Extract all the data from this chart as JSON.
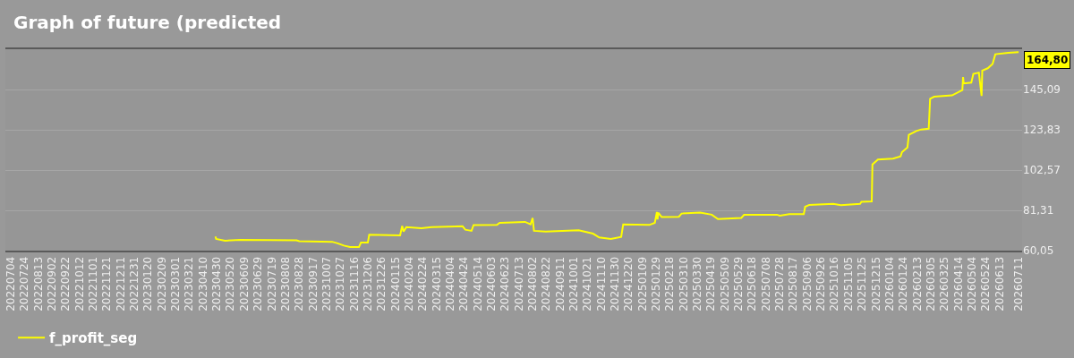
{
  "chart_data": {
    "type": "line",
    "title": "Graph of future (predicted",
    "xlim": [
      "2022-06-26",
      "2026-07-16"
    ],
    "xticks": [
      {
        "value": "2022-07-04",
        "label": "20220704"
      },
      {
        "value": "2022-07-24",
        "label": "20220724"
      },
      {
        "value": "2022-08-13",
        "label": "20220813"
      },
      {
        "value": "2022-09-02",
        "label": "20220902"
      },
      {
        "value": "2022-09-22",
        "label": "20220922"
      },
      {
        "value": "2022-10-12",
        "label": "20221012"
      },
      {
        "value": "2022-11-01",
        "label": "20221101"
      },
      {
        "value": "2022-11-21",
        "label": "20221121"
      },
      {
        "value": "2022-12-11",
        "label": "20221211"
      },
      {
        "value": "2022-12-31",
        "label": "20221231"
      },
      {
        "value": "2023-01-20",
        "label": "20230120"
      },
      {
        "value": "2023-02-09",
        "label": "20230209"
      },
      {
        "value": "2023-03-01",
        "label": "20230301"
      },
      {
        "value": "2023-03-21",
        "label": "20230321"
      },
      {
        "value": "2023-04-10",
        "label": "20230410"
      },
      {
        "value": "2023-04-30",
        "label": "20230430"
      },
      {
        "value": "2023-05-20",
        "label": "20230520"
      },
      {
        "value": "2023-06-09",
        "label": "20230609"
      },
      {
        "value": "2023-06-29",
        "label": "20230629"
      },
      {
        "value": "2023-07-19",
        "label": "20230719"
      },
      {
        "value": "2023-08-08",
        "label": "20230808"
      },
      {
        "value": "2023-08-28",
        "label": "20230828"
      },
      {
        "value": "2023-09-17",
        "label": "20230917"
      },
      {
        "value": "2023-10-07",
        "label": "20231007"
      },
      {
        "value": "2023-10-27",
        "label": "20231027"
      },
      {
        "value": "2023-11-16",
        "label": "20231116"
      },
      {
        "value": "2023-12-06",
        "label": "20231206"
      },
      {
        "value": "2023-12-26",
        "label": "20231226"
      },
      {
        "value": "2024-01-15",
        "label": "20240115"
      },
      {
        "value": "2024-02-04",
        "label": "20240204"
      },
      {
        "value": "2024-02-24",
        "label": "20240224"
      },
      {
        "value": "2024-03-15",
        "label": "20240315"
      },
      {
        "value": "2024-04-04",
        "label": "20240404"
      },
      {
        "value": "2024-04-24",
        "label": "20240424"
      },
      {
        "value": "2024-05-14",
        "label": "20240514"
      },
      {
        "value": "2024-06-03",
        "label": "20240603"
      },
      {
        "value": "2024-06-23",
        "label": "20240623"
      },
      {
        "value": "2024-07-13",
        "label": "20240713"
      },
      {
        "value": "2024-08-02",
        "label": "20240802"
      },
      {
        "value": "2024-08-22",
        "label": "20240822"
      },
      {
        "value": "2024-09-11",
        "label": "20240911"
      },
      {
        "value": "2024-10-01",
        "label": "20241001"
      },
      {
        "value": "2024-10-21",
        "label": "20241021"
      },
      {
        "value": "2024-11-10",
        "label": "20241110"
      },
      {
        "value": "2024-11-30",
        "label": "20241130"
      },
      {
        "value": "2024-12-20",
        "label": "20241220"
      },
      {
        "value": "2025-01-09",
        "label": "20250109"
      },
      {
        "value": "2025-01-29",
        "label": "20250129"
      },
      {
        "value": "2025-02-18",
        "label": "20250218"
      },
      {
        "value": "2025-03-10",
        "label": "20250310"
      },
      {
        "value": "2025-03-30",
        "label": "20250330"
      },
      {
        "value": "2025-04-19",
        "label": "20250419"
      },
      {
        "value": "2025-05-09",
        "label": "20250509"
      },
      {
        "value": "2025-05-29",
        "label": "20250529"
      },
      {
        "value": "2025-06-18",
        "label": "20250618"
      },
      {
        "value": "2025-07-08",
        "label": "20250708"
      },
      {
        "value": "2025-07-28",
        "label": "20250728"
      },
      {
        "value": "2025-08-17",
        "label": "20250817"
      },
      {
        "value": "2025-09-06",
        "label": "20250906"
      },
      {
        "value": "2025-09-26",
        "label": "20250926"
      },
      {
        "value": "2025-10-16",
        "label": "20251016"
      },
      {
        "value": "2025-11-05",
        "label": "20251105"
      },
      {
        "value": "2025-11-25",
        "label": "20251125"
      },
      {
        "value": "2025-12-15",
        "label": "20251215"
      },
      {
        "value": "2026-01-04",
        "label": "20260104"
      },
      {
        "value": "2026-01-24",
        "label": "20260124"
      },
      {
        "value": "2026-02-13",
        "label": "20260213"
      },
      {
        "value": "2026-03-05",
        "label": "20260305"
      },
      {
        "value": "2026-03-25",
        "label": "20260325"
      },
      {
        "value": "2026-04-14",
        "label": "20260414"
      },
      {
        "value": "2026-05-04",
        "label": "20260504"
      },
      {
        "value": "2026-05-24",
        "label": "20260524"
      },
      {
        "value": "2026-06-13",
        "label": "20260613"
      },
      {
        "value": "2026-07-11",
        "label": "20260711"
      }
    ],
    "ylim": [
      60.05,
      166.35
    ],
    "yticks": [
      {
        "value": 60.05,
        "label": "60,05"
      },
      {
        "value": 81.31,
        "label": "81,31"
      },
      {
        "value": 102.57,
        "label": "102,57"
      },
      {
        "value": 123.83,
        "label": "123,83"
      },
      {
        "value": 145.09,
        "label": "145,09"
      },
      {
        "value": 166.35,
        "label": null
      }
    ],
    "grid": "y",
    "legend": "bottom left",
    "x": [
      "2023-04-28",
      "2023-04-29",
      "2023-05-12",
      "2023-06-03",
      "2023-08-24",
      "2023-08-28",
      "2023-10-15",
      "2023-10-23",
      "2023-11-01",
      "2023-11-10",
      "2023-11-23",
      "2023-11-26",
      "2023-12-06",
      "2023-12-08",
      "2024-01-22",
      "2024-01-25",
      "2024-01-27",
      "2024-01-31",
      "2024-02-22",
      "2024-03-08",
      "2024-04-22",
      "2024-04-26",
      "2024-05-05",
      "2024-05-08",
      "2024-06-11",
      "2024-06-15",
      "2024-07-22",
      "2024-07-30",
      "2024-08-02",
      "2024-08-04",
      "2024-08-21",
      "2024-10-08",
      "2024-10-29",
      "2024-11-07",
      "2024-11-24",
      "2024-12-09",
      "2024-12-12",
      "2025-01-19",
      "2025-01-27",
      "2025-01-30",
      "2025-01-31",
      "2025-02-01",
      "2025-02-06",
      "2025-03-03",
      "2025-03-07",
      "2025-04-03",
      "2025-04-20",
      "2025-04-29",
      "2025-06-02",
      "2025-06-06",
      "2025-07-24",
      "2025-07-28",
      "2025-08-11",
      "2025-09-01",
      "2025-09-03",
      "2025-09-09",
      "2025-10-14",
      "2025-10-25",
      "2025-11-22",
      "2025-11-24",
      "2025-12-09",
      "2025-12-10",
      "2025-12-18",
      "2026-01-09",
      "2026-01-20",
      "2026-01-22",
      "2026-01-30",
      "2026-02-01",
      "2026-02-12",
      "2026-02-19",
      "2026-03-02",
      "2026-03-04",
      "2026-03-10",
      "2026-04-05",
      "2026-04-20",
      "2026-04-21",
      "2026-04-22",
      "2026-05-03",
      "2026-05-06",
      "2026-05-14",
      "2026-05-18",
      "2026-05-19",
      "2026-05-27",
      "2026-06-03",
      "2026-06-07",
      "2026-06-26",
      "2026-07-11"
    ],
    "series": [
      {
        "name": "f_profit_seg",
        "color": "#ffff00",
        "values": [
          67.5,
          66.2,
          65.3,
          65.7,
          65.5,
          65.0,
          64.7,
          63.9,
          62.7,
          61.9,
          61.9,
          64.3,
          64.3,
          68.4,
          68.1,
          73.1,
          70.1,
          72.4,
          71.9,
          72.4,
          72.9,
          71.1,
          70.5,
          73.5,
          73.6,
          74.7,
          75.2,
          73.9,
          77.3,
          70.5,
          70.1,
          70.8,
          69.0,
          67.0,
          66.2,
          67.3,
          73.9,
          73.6,
          74.7,
          80.4,
          76.5,
          80.1,
          77.8,
          77.9,
          79.6,
          80.1,
          79.0,
          76.7,
          77.3,
          78.9,
          79.0,
          78.5,
          79.3,
          79.3,
          83.2,
          84.2,
          84.7,
          84.0,
          84.7,
          85.8,
          86.0,
          105.5,
          108.1,
          108.6,
          109.8,
          112.0,
          114.5,
          121.2,
          123.2,
          124.0,
          124.4,
          140.2,
          141.3,
          142.0,
          144.8,
          151.7,
          148.3,
          148.7,
          153.3,
          154.0,
          141.7,
          155.1,
          156.3,
          158.6,
          163.7,
          164.5,
          164.8
        ]
      }
    ],
    "annotations": [
      {
        "text": "164,80",
        "x": "2026-07-11",
        "y": 164.8
      }
    ]
  }
}
